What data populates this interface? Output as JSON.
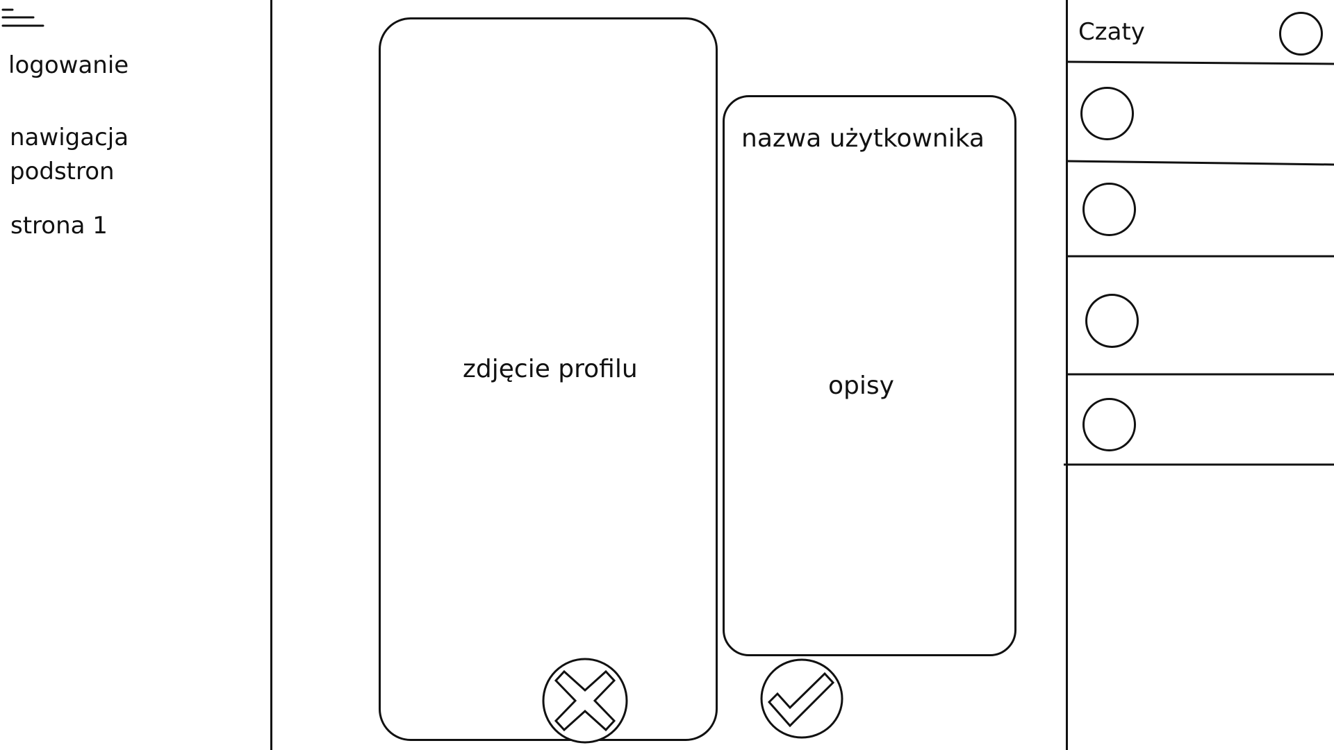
{
  "sidebar": {
    "menu_icon": "hamburger-menu-icon",
    "login_label": "logowanie",
    "nav_label_line1": "nawigacja",
    "nav_label_line2": "podstron",
    "page_label": "strona 1"
  },
  "profile": {
    "photo_label": "zdjęcie profilu",
    "username_label": "nazwa użytkownika",
    "description_label": "opisy"
  },
  "actions": {
    "reject_icon": "close-x-icon",
    "accept_icon": "checkmark-icon"
  },
  "chats": {
    "title": "Czaty",
    "item_count": 4
  }
}
